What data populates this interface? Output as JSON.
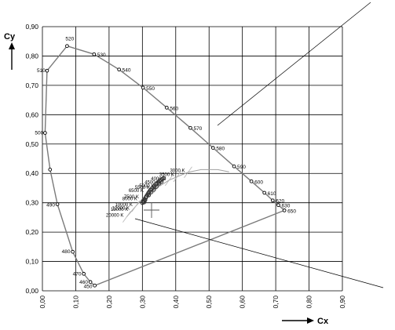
{
  "chart_data": {
    "type": "scatter",
    "title": "",
    "xlabel": "Cx",
    "ylabel": "Cy",
    "xlim": [
      0.0,
      0.9
    ],
    "ylim": [
      0.0,
      0.9
    ],
    "grid": true,
    "x_ticks": [
      "0,00",
      "0,10",
      "0,20",
      "0,30",
      "0,40",
      "0,50",
      "0,60",
      "0,70",
      "0,80",
      "0,90"
    ],
    "y_ticks": [
      "0,00",
      "0,10",
      "0,20",
      "0,30",
      "0,40",
      "0,50",
      "0,60",
      "0,70",
      "0,80",
      "0,90"
    ],
    "spectral_locus": [
      {
        "label": "450",
        "x": 0.157,
        "y": 0.018
      },
      {
        "label": "460",
        "x": 0.144,
        "y": 0.03
      },
      {
        "label": "470",
        "x": 0.124,
        "y": 0.058
      },
      {
        "label": "480",
        "x": 0.091,
        "y": 0.133
      },
      {
        "label": "490",
        "x": 0.045,
        "y": 0.295
      },
      {
        "label": "",
        "x": 0.023,
        "y": 0.413
      },
      {
        "label": "500",
        "x": 0.008,
        "y": 0.538
      },
      {
        "label": "510",
        "x": 0.014,
        "y": 0.75
      },
      {
        "label": "520",
        "x": 0.074,
        "y": 0.834
      },
      {
        "label": "530",
        "x": 0.155,
        "y": 0.806
      },
      {
        "label": "540",
        "x": 0.23,
        "y": 0.754
      },
      {
        "label": "550",
        "x": 0.302,
        "y": 0.692
      },
      {
        "label": "560",
        "x": 0.373,
        "y": 0.624
      },
      {
        "label": "570",
        "x": 0.444,
        "y": 0.555
      },
      {
        "label": "580",
        "x": 0.512,
        "y": 0.487
      },
      {
        "label": "590",
        "x": 0.575,
        "y": 0.424
      },
      {
        "label": "600",
        "x": 0.627,
        "y": 0.373
      },
      {
        "label": "610",
        "x": 0.666,
        "y": 0.334
      },
      {
        "label": "620",
        "x": 0.691,
        "y": 0.308
      },
      {
        "label": "630",
        "x": 0.708,
        "y": 0.292
      },
      {
        "label": "650",
        "x": 0.726,
        "y": 0.274
      }
    ],
    "cct_labels": [
      {
        "label": "3000 K",
        "x": 0.437,
        "y": 0.404
      },
      {
        "label": "4000 K",
        "x": 0.38,
        "y": 0.377
      },
      {
        "label": "3500 K",
        "x": 0.405,
        "y": 0.391
      },
      {
        "label": "4500 K",
        "x": 0.361,
        "y": 0.365
      },
      {
        "label": "5000 K",
        "x": 0.345,
        "y": 0.352
      },
      {
        "label": "5500 K",
        "x": 0.332,
        "y": 0.347
      },
      {
        "label": "6500 K",
        "x": 0.313,
        "y": 0.337
      },
      {
        "label": "7500 K",
        "x": 0.299,
        "y": 0.315
      },
      {
        "label": "8000 K",
        "x": 0.294,
        "y": 0.309
      },
      {
        "label": "10000 K",
        "x": 0.28,
        "y": 0.288
      },
      {
        "label": "12000 K",
        "x": 0.271,
        "y": 0.276
      },
      {
        "label": "13000 K",
        "x": 0.267,
        "y": 0.273
      },
      {
        "label": "20000 K",
        "x": 0.253,
        "y": 0.252
      }
    ]
  }
}
